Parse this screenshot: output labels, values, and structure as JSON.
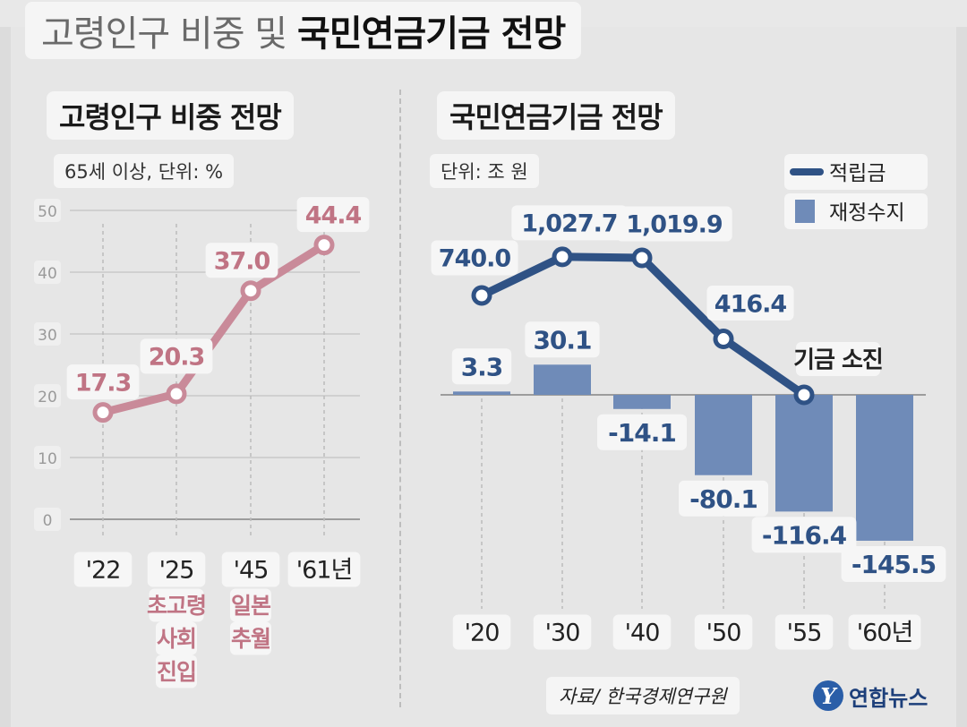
{
  "title": {
    "light": "고령인구 비중 및",
    "bold": "국민연금기금 전망"
  },
  "left": {
    "title": "고령인구 비중 전망",
    "unit": "65세 이상, 단위: %"
  },
  "right": {
    "title": "국민연금기금 전망",
    "unit": "단위: 조 원",
    "annotation": "기금 소진"
  },
  "source": "자료/ 한국경제연구원",
  "logo": {
    "mark": "Y",
    "text": "연합뉴스"
  },
  "colors": {
    "elderly_line": "#c98a99",
    "elderly_text": "#c07484",
    "reserve_line": "#2f5285",
    "balance_bar": "#6f8bb8",
    "label_text": "#2f5285"
  },
  "chart_data": [
    {
      "type": "line",
      "title": "고령인구 비중 전망",
      "subtitle": "65세 이상, 단위: %",
      "categories": [
        "'22",
        "'25",
        "'45",
        "'61년"
      ],
      "category_notes": [
        "",
        "초고령\n사회\n진입",
        "일본\n추월",
        ""
      ],
      "series": [
        {
          "values": [
            17.3,
            20.3,
            37.0,
            44.4
          ]
        }
      ],
      "value_labels": [
        "17.3",
        "20.3",
        "37.0",
        "44.4"
      ],
      "ylim": [
        0,
        50
      ],
      "yticks": [
        "0",
        "10",
        "20",
        "30",
        "40",
        "50"
      ],
      "grid": true
    },
    {
      "type": "bar",
      "title": "국민연금기금 전망",
      "subtitle": "단위: 조 원",
      "categories": [
        "'20",
        "'30",
        "'40",
        "'50",
        "'55",
        "'60년"
      ],
      "series": [
        {
          "name": "적립금",
          "type": "line",
          "values": [
            740.0,
            1027.7,
            1019.9,
            416.4,
            0,
            null
          ],
          "labels": [
            "740.0",
            "1,027.7",
            "1,019.9",
            "416.4",
            "",
            ""
          ]
        },
        {
          "name": "재정수지",
          "type": "bar",
          "values": [
            3.3,
            30.1,
            -14.1,
            -80.1,
            -116.4,
            -145.5
          ],
          "labels": [
            "3.3",
            "30.1",
            "-14.1",
            "-80.1",
            "-116.4",
            "-145.5"
          ]
        }
      ],
      "annotation": "기금 소진",
      "legend": "top-right"
    }
  ]
}
